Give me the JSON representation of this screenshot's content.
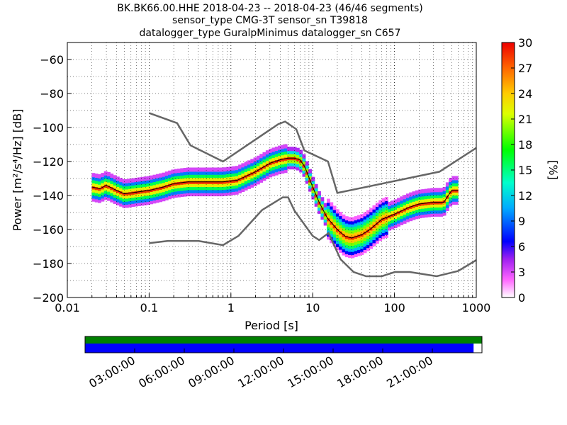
{
  "header": {
    "line1": "BK.BK66.00.HHE   2018-04-23 -- 2018-04-23  (46/46 segments)",
    "line2": "sensor_type CMG-3T sensor_sn T39818",
    "line3": "datalogger_type GuralpMinimus datalogger_sn C657"
  },
  "colors": {
    "noise_model": "#666666",
    "mean_line": "#000000",
    "grid": "#000000",
    "timeline_top": "#008000",
    "timeline_bottom": "#0000ff"
  },
  "colorbar": {
    "label": "[%]",
    "ticks": [
      "0",
      "3",
      "6",
      "9",
      "12",
      "15",
      "18",
      "21",
      "24",
      "27",
      "30"
    ],
    "range": [
      0,
      30
    ]
  },
  "timeline": {
    "tick_labels": [
      "03:00:00",
      "06:00:00",
      "09:00:00",
      "12:00:00",
      "15:00:00",
      "18:00:00",
      "21:00:00"
    ],
    "coverage_fraction": 0.979
  },
  "chart_data": {
    "type": "heatmap",
    "title": "BK.BK66.00.HHE   2018-04-23 -- 2018-04-23  (46/46 segments)",
    "xlabel": "Period [s]",
    "ylabel": "Power [m²/s⁴/Hz] [dB]",
    "x_scale": "log",
    "xlim": [
      0.01,
      1000
    ],
    "ylim": [
      -200,
      -50
    ],
    "x_tick_labels": [
      "0.01",
      "0.1",
      "1",
      "10",
      "100",
      "1000"
    ],
    "y_tick_labels": [
      "−60",
      "−80",
      "−100",
      "−120",
      "−140",
      "−160",
      "−180",
      "−200"
    ],
    "grid": true,
    "high_noise_model": {
      "x": [
        0.1,
        0.22,
        0.32,
        0.8,
        3.8,
        4.6,
        6.3,
        7.9,
        15.4,
        20,
        354.8,
        1000
      ],
      "y": [
        -91.5,
        -97.4,
        -110.5,
        -120,
        -98,
        -96.5,
        -101,
        -113.5,
        -120,
        -138.5,
        -126,
        -112
      ]
    },
    "low_noise_model": {
      "x": [
        0.1,
        0.17,
        0.4,
        0.8,
        1.24,
        2.4,
        4.3,
        5,
        6,
        10,
        12,
        15.6,
        21.9,
        31.6,
        45,
        70,
        101,
        154,
        328,
        600,
        1000
      ],
      "y": [
        -168,
        -166.7,
        -166.7,
        -169.2,
        -163.7,
        -148.6,
        -141.1,
        -141.1,
        -149,
        -163.8,
        -166.2,
        -162.1,
        -177.5,
        -185,
        -187.5,
        -187.5,
        -185,
        -185,
        -187.5,
        -184.4,
        -178
      ]
    },
    "mean_psd": {
      "x": [
        0.02,
        0.025,
        0.03,
        0.04,
        0.05,
        0.07,
        0.1,
        0.15,
        0.2,
        0.3,
        0.5,
        0.8,
        1.2,
        2,
        3,
        4,
        5,
        6,
        7,
        8,
        10,
        12,
        15,
        20,
        25,
        30,
        40,
        50,
        70,
        100,
        150,
        200,
        300,
        400,
        500,
        600
      ],
      "y": [
        -135,
        -136,
        -134,
        -137,
        -139,
        -138,
        -137,
        -135,
        -133,
        -132,
        -132,
        -132,
        -131,
        -126,
        -121,
        -119,
        -118,
        -118,
        -119,
        -123,
        -135,
        -144,
        -153,
        -160,
        -164,
        -165,
        -163,
        -160,
        -154,
        -151,
        -147,
        -145,
        -144,
        -144,
        -137,
        -137
      ]
    },
    "density": {
      "value_unit": "%",
      "range": [
        0,
        30
      ]
    }
  }
}
